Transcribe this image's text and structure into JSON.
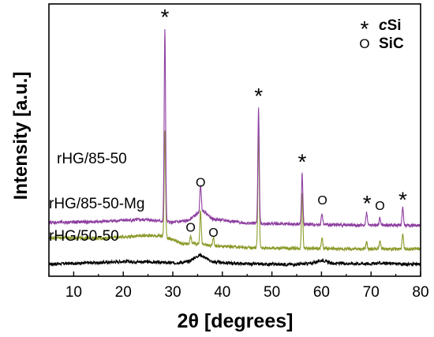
{
  "chart_data": {
    "type": "line",
    "xlabel": "2θ [degrees]",
    "ylabel": "Intensity [a.u.]",
    "xlim": [
      5,
      80
    ],
    "x_ticks": [
      10,
      20,
      30,
      40,
      50,
      60,
      70,
      80
    ],
    "y_ticks_shown": false,
    "grid": false,
    "legend": {
      "placement": "top-right",
      "entries": [
        {
          "symbol": "*",
          "prefix": "c",
          "suffix": "Si"
        },
        {
          "symbol": "O",
          "prefix": "",
          "suffix": "SiC"
        }
      ]
    },
    "series": [
      {
        "name": "rHG/50-50",
        "color": "#000000",
        "baseline": 0.0,
        "profile": [
          [
            5,
            0.04
          ],
          [
            10,
            0.06
          ],
          [
            15,
            0.08
          ],
          [
            20,
            0.11
          ],
          [
            25,
            0.1
          ],
          [
            30,
            0.07
          ],
          [
            33,
            0.1
          ],
          [
            35.5,
            0.3
          ],
          [
            38,
            0.1
          ],
          [
            45,
            0.04
          ],
          [
            55,
            0.03
          ],
          [
            58,
            0.06
          ],
          [
            60.2,
            0.15
          ],
          [
            62,
            0.06
          ],
          [
            70,
            0.05
          ],
          [
            72,
            0.07
          ],
          [
            76,
            0.04
          ],
          [
            80,
            0.03
          ]
        ],
        "peaks": []
      },
      {
        "name": "rHG/85-50-Mg",
        "color": "#8c9a2a",
        "baseline": 0.0,
        "profile": [
          [
            5,
            0.78
          ],
          [
            15,
            0.76
          ],
          [
            20,
            0.8
          ],
          [
            25,
            0.84
          ],
          [
            28,
            0.82
          ],
          [
            32,
            0.6
          ],
          [
            34,
            0.62
          ],
          [
            38,
            0.55
          ],
          [
            45,
            0.5
          ],
          [
            55,
            0.48
          ],
          [
            65,
            0.46
          ],
          [
            80,
            0.46
          ]
        ],
        "peaks": [
          {
            "x": 28.4,
            "height": 3.0
          },
          {
            "x": 33.6,
            "height": 0.2
          },
          {
            "x": 35.6,
            "height": 0.95
          },
          {
            "x": 38.2,
            "height": 0.25
          },
          {
            "x": 47.3,
            "height": 3.15
          },
          {
            "x": 56.1,
            "height": 1.55
          },
          {
            "x": 60.1,
            "height": 0.3
          },
          {
            "x": 69.1,
            "height": 0.2
          },
          {
            "x": 71.8,
            "height": 0.2
          },
          {
            "x": 76.4,
            "height": 0.4
          }
        ]
      },
      {
        "name": "rHG/85-50",
        "color": "#8e3fa0",
        "baseline": 0.0,
        "profile": [
          [
            5,
            1.2
          ],
          [
            15,
            1.22
          ],
          [
            20,
            1.26
          ],
          [
            25,
            1.28
          ],
          [
            30,
            1.2
          ],
          [
            33,
            1.25
          ],
          [
            36,
            1.55
          ],
          [
            38,
            1.3
          ],
          [
            45,
            1.18
          ],
          [
            55,
            1.15
          ],
          [
            65,
            1.13
          ],
          [
            80,
            1.12
          ]
        ],
        "peaks": [
          {
            "x": 28.4,
            "height": 5.35
          },
          {
            "x": 35.6,
            "height": 0.75
          },
          {
            "x": 47.3,
            "height": 3.2
          },
          {
            "x": 56.1,
            "height": 1.4
          },
          {
            "x": 60.1,
            "height": 0.3
          },
          {
            "x": 69.1,
            "height": 0.35
          },
          {
            "x": 71.8,
            "height": 0.2
          },
          {
            "x": 76.4,
            "height": 0.5
          }
        ]
      }
    ],
    "ylim": [
      -0.3,
      7.3
    ],
    "annotations": [
      {
        "symbol": "*",
        "x": 28.4,
        "y": 6.95
      },
      {
        "symbol": "*",
        "x": 47.3,
        "y": 4.75
      },
      {
        "symbol": "*",
        "x": 56.1,
        "y": 2.9
      },
      {
        "symbol": "*",
        "x": 69.2,
        "y": 1.75
      },
      {
        "symbol": "*",
        "x": 76.4,
        "y": 1.85
      },
      {
        "symbol": "O",
        "x": 35.6,
        "y": 2.2
      },
      {
        "symbol": "O",
        "x": 60.2,
        "y": 1.7
      },
      {
        "symbol": "O",
        "x": 71.8,
        "y": 1.55
      },
      {
        "symbol": "O",
        "x": 33.6,
        "y": 0.95
      },
      {
        "symbol": "O",
        "x": 38.2,
        "y": 0.8
      }
    ]
  }
}
